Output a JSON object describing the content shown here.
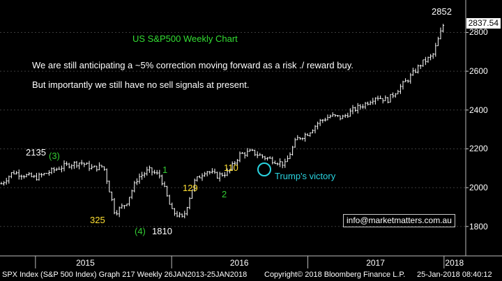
{
  "colors": {
    "background": "#000000",
    "price_bars": "#ffffff",
    "grid": "#404040",
    "title": "#33dd33",
    "commentary": "#ffffff",
    "wave_label": "#33cc33",
    "wave_amount": "#ffe033",
    "callout": "#2ad4e0",
    "footer_bg": "#000000"
  },
  "chart_data": {
    "type": "line",
    "title": "US S&P500 Weekly Chart",
    "commentary": [
      "We are still anticipating a ~5% correction moving forward as a risk ./ reward buy.",
      "But importantly we still have no sell signals at present."
    ],
    "y_axis": {
      "ticks": [
        "2800",
        "2600",
        "2400",
        "2200",
        "2000",
        "1800"
      ],
      "ylim": [
        1710,
        2920
      ]
    },
    "x_axis": {
      "ticks": [
        "2015",
        "2016",
        "2017",
        "2018"
      ]
    },
    "last_price": "2837.54",
    "series": [
      {
        "points": [
          [
            "2014-10",
            2020
          ],
          [
            "2014-11",
            2080
          ],
          [
            "2015-01",
            2050
          ],
          [
            "2015-03",
            2100
          ],
          [
            "2015-04",
            2120
          ],
          [
            "2015-05",
            2130
          ],
          [
            "2015-06",
            2100
          ],
          [
            "2015-07",
            2110
          ],
          [
            "2015-08",
            1870
          ],
          [
            "2015-09",
            1920
          ],
          [
            "2015-10",
            2050
          ],
          [
            "2015-11",
            2090
          ],
          [
            "2015-12",
            2060
          ],
          [
            "2016-01",
            1880
          ],
          [
            "2016-02",
            1840
          ],
          [
            "2016-03",
            2030
          ],
          [
            "2016-04",
            2090
          ],
          [
            "2016-05",
            2060
          ],
          [
            "2016-06",
            2080
          ],
          [
            "2016-07",
            2170
          ],
          [
            "2016-08",
            2185
          ],
          [
            "2016-09",
            2160
          ],
          [
            "2016-10",
            2140
          ],
          [
            "2016-11",
            2120
          ],
          [
            "2016-12",
            2250
          ],
          [
            "2017-01",
            2280
          ],
          [
            "2017-02",
            2340
          ],
          [
            "2017-03",
            2370
          ],
          [
            "2017-04",
            2360
          ],
          [
            "2017-05",
            2400
          ],
          [
            "2017-06",
            2430
          ],
          [
            "2017-07",
            2470
          ],
          [
            "2017-08",
            2450
          ],
          [
            "2017-09",
            2510
          ],
          [
            "2017-10",
            2570
          ],
          [
            "2017-11",
            2640
          ],
          [
            "2017-12",
            2680
          ],
          [
            "2018-01",
            2850
          ]
        ]
      }
    ],
    "annotations": {
      "high_2135": "2135",
      "wave_3": "(3)",
      "drop_325": "325",
      "wave_4": "(4)",
      "low_1810": "1810",
      "wave_1": "1",
      "amount_129": "129",
      "amount_110": "110",
      "wave_2": "2",
      "top_2852": "2852",
      "trump": "Trump's victory"
    }
  },
  "contact": "info@marketmatters.com.au",
  "footer": {
    "left": "SPX Index (S&P 500 Index) Graph 217  Weekly 26JAN2013-25JAN2018",
    "middle": "Copyright© 2018 Bloomberg Finance L.P.",
    "right": "25-Jan-2018 08:40:12"
  }
}
